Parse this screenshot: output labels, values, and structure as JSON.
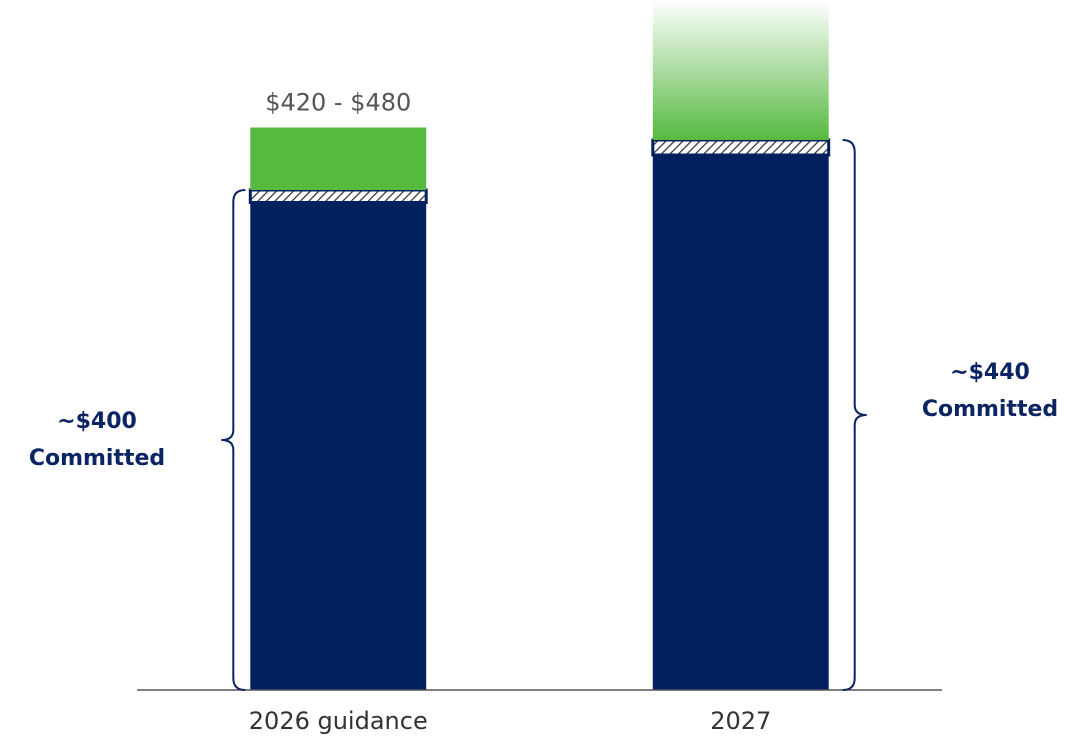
{
  "chart_data": {
    "type": "stacked-bar",
    "categories": [
      "2026 guidance",
      "2027"
    ],
    "series": [
      {
        "color": "#002060",
        "values": [
          390,
          428
        ]
      },
      {
        "color": "#002060",
        "pattern": "hatch",
        "values": [
          10,
          12
        ]
      },
      {
        "color": "#56b940",
        "fade": [
          false,
          true
        ],
        "values": [
          50,
          112
        ]
      }
    ],
    "ylim": [
      0,
      552
    ],
    "annotations": [
      {
        "category": 0,
        "text": "$420 - $480"
      }
    ],
    "brackets": [
      {
        "category": 0,
        "side": "left",
        "lines": [
          "~$400",
          "Committed"
        ]
      },
      {
        "category": 1,
        "side": "right",
        "lines": [
          "~$440",
          "Committed"
        ]
      }
    ]
  }
}
